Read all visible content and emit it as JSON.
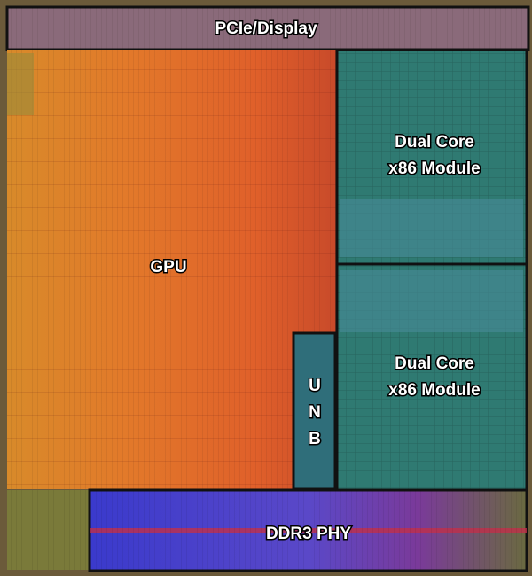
{
  "regions": [
    {
      "id": "pcie",
      "lines": [
        "PCIe/Display"
      ]
    },
    {
      "id": "gpu",
      "lines": [
        "GPU"
      ]
    },
    {
      "id": "module-top",
      "lines": [
        "Dual Core",
        "x86 Module"
      ]
    },
    {
      "id": "module-bottom",
      "lines": [
        "Dual Core",
        "x86 Module"
      ]
    },
    {
      "id": "unb",
      "lines": [
        "U",
        "N",
        "B"
      ]
    },
    {
      "id": "ddr3",
      "lines": [
        "DDR3 PHY"
      ]
    }
  ]
}
